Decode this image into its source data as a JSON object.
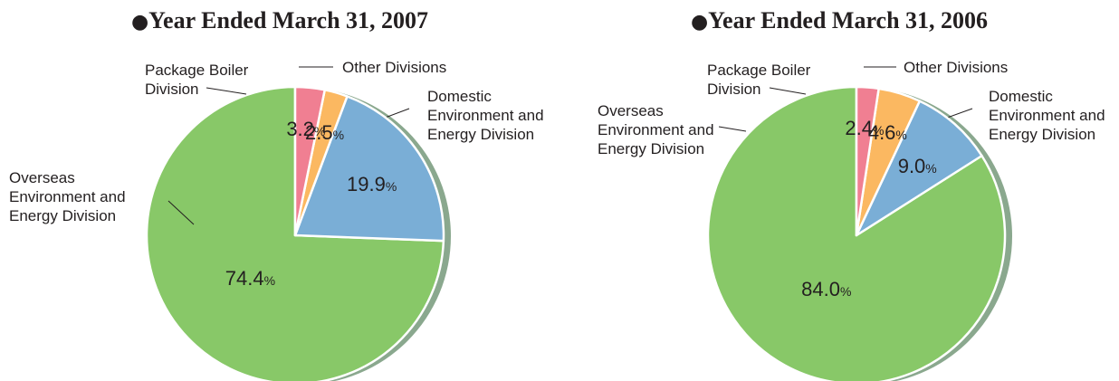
{
  "chart_data": [
    {
      "type": "pie",
      "title": "Year Ended March 31,  2007",
      "unit": "%",
      "slices": [
        {
          "name": "Domestic Environment and Energy Division",
          "label_lines": [
            "Domestic",
            "Environment and",
            "Energy Division"
          ],
          "value": 74.4,
          "value_label": "74.4",
          "color": "#88c868"
        },
        {
          "name": "Overseas Environment and Energy Division",
          "label_lines": [
            "Overseas",
            "Environment and",
            "Energy Division"
          ],
          "value": 19.9,
          "value_label": "19.9",
          "color": "#7aaed6"
        },
        {
          "name": "Package Boiler Division",
          "label_lines": [
            "Package Boiler",
            "Division"
          ],
          "value": 2.5,
          "value_label": "2.5",
          "color": "#fbb861"
        },
        {
          "name": "Other Divisions",
          "label_lines": [
            "Other Divisions"
          ],
          "value": 3.2,
          "value_label": "3.2",
          "color": "#f07f92"
        }
      ]
    },
    {
      "type": "pie",
      "title": "Year Ended March 31,  2006",
      "unit": "%",
      "slices": [
        {
          "name": "Domestic Environment and Energy Division",
          "label_lines": [
            "Domestic",
            "Environment and",
            "Energy Division"
          ],
          "value": 84.0,
          "value_label": "84.0",
          "color": "#88c868"
        },
        {
          "name": "Overseas Environment and Energy Division",
          "label_lines": [
            "Overseas",
            "Environment and",
            "Energy Division"
          ],
          "value": 9.0,
          "value_label": "9.0",
          "color": "#7aaed6"
        },
        {
          "name": "Package Boiler Division",
          "label_lines": [
            "Package Boiler",
            "Division"
          ],
          "value": 4.6,
          "value_label": "4.6",
          "color": "#fbb861"
        },
        {
          "name": "Other Divisions",
          "label_lines": [
            "Other Divisions"
          ],
          "value": 2.4,
          "value_label": "2.4",
          "color": "#f07f92"
        }
      ]
    }
  ],
  "shadow_color": "#8aa88e",
  "title_bullet": "●"
}
